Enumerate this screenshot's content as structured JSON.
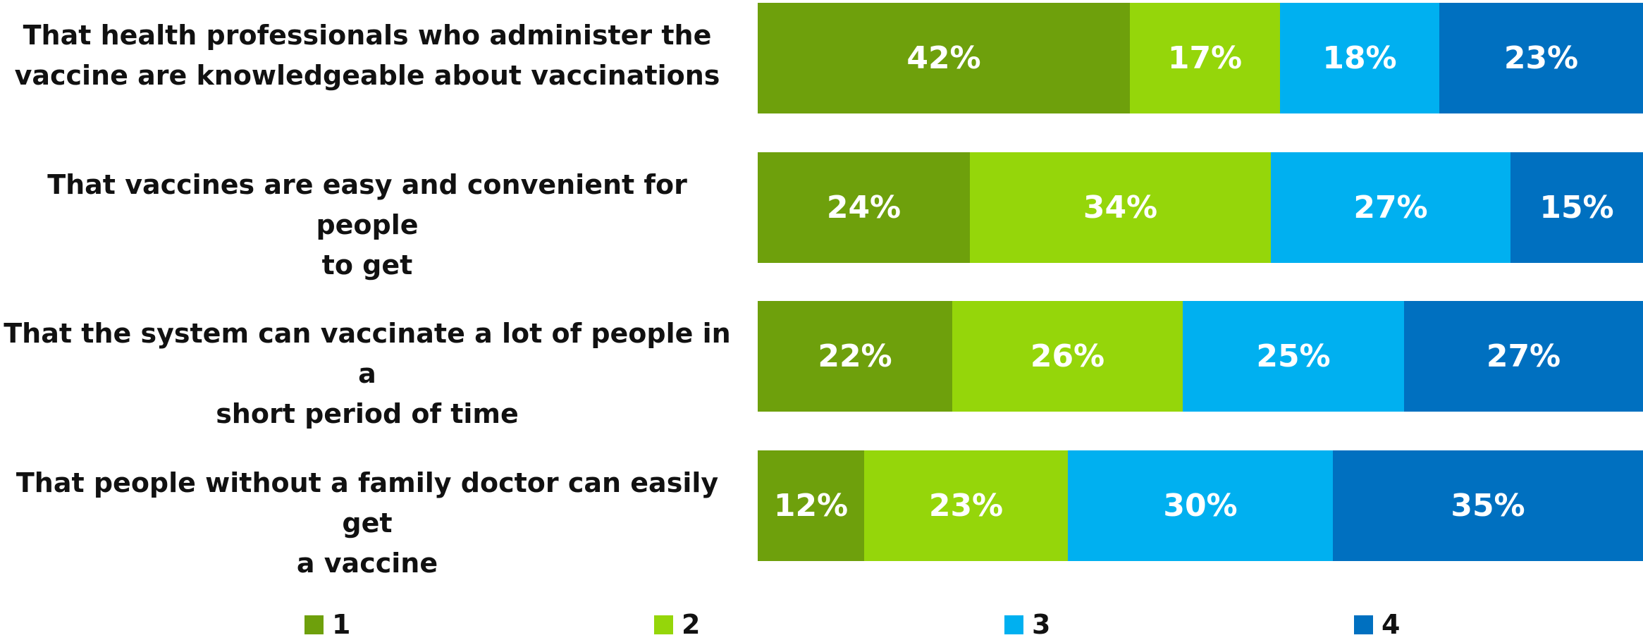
{
  "chart_data": {
    "type": "bar",
    "orientation": "horizontal",
    "stacked": true,
    "title": "",
    "xlabel": "",
    "ylabel": "",
    "xlim": [
      0,
      100
    ],
    "grid": false,
    "legend_position": "bottom",
    "categories": [
      "That health professionals who administer the vaccine are knowledgeable about vaccinations",
      "That vaccines are easy and convenient for people to get",
      "That the system can vaccinate a lot of people in a short period of time",
      "That people without a family doctor can easily get a vaccine"
    ],
    "category_lines": [
      [
        "That health professionals who administer the",
        "vaccine are knowledgeable about vaccinations"
      ],
      [
        "That vaccines are easy and convenient for people",
        "to get"
      ],
      [
        "That the system can vaccinate a lot of people in a",
        "short period of time"
      ],
      [
        "That people without a family doctor can easily get",
        "a vaccine"
      ]
    ],
    "series": [
      {
        "name": "1",
        "color": "#6ea00c",
        "values": [
          42,
          24,
          22,
          12
        ]
      },
      {
        "name": "2",
        "color": "#95d60a",
        "values": [
          17,
          34,
          26,
          23
        ]
      },
      {
        "name": "3",
        "color": "#00b0f0",
        "values": [
          18,
          27,
          25,
          30
        ]
      },
      {
        "name": "4",
        "color": "#0070c0",
        "values": [
          23,
          15,
          27,
          35
        ]
      }
    ],
    "value_suffix": "%"
  }
}
